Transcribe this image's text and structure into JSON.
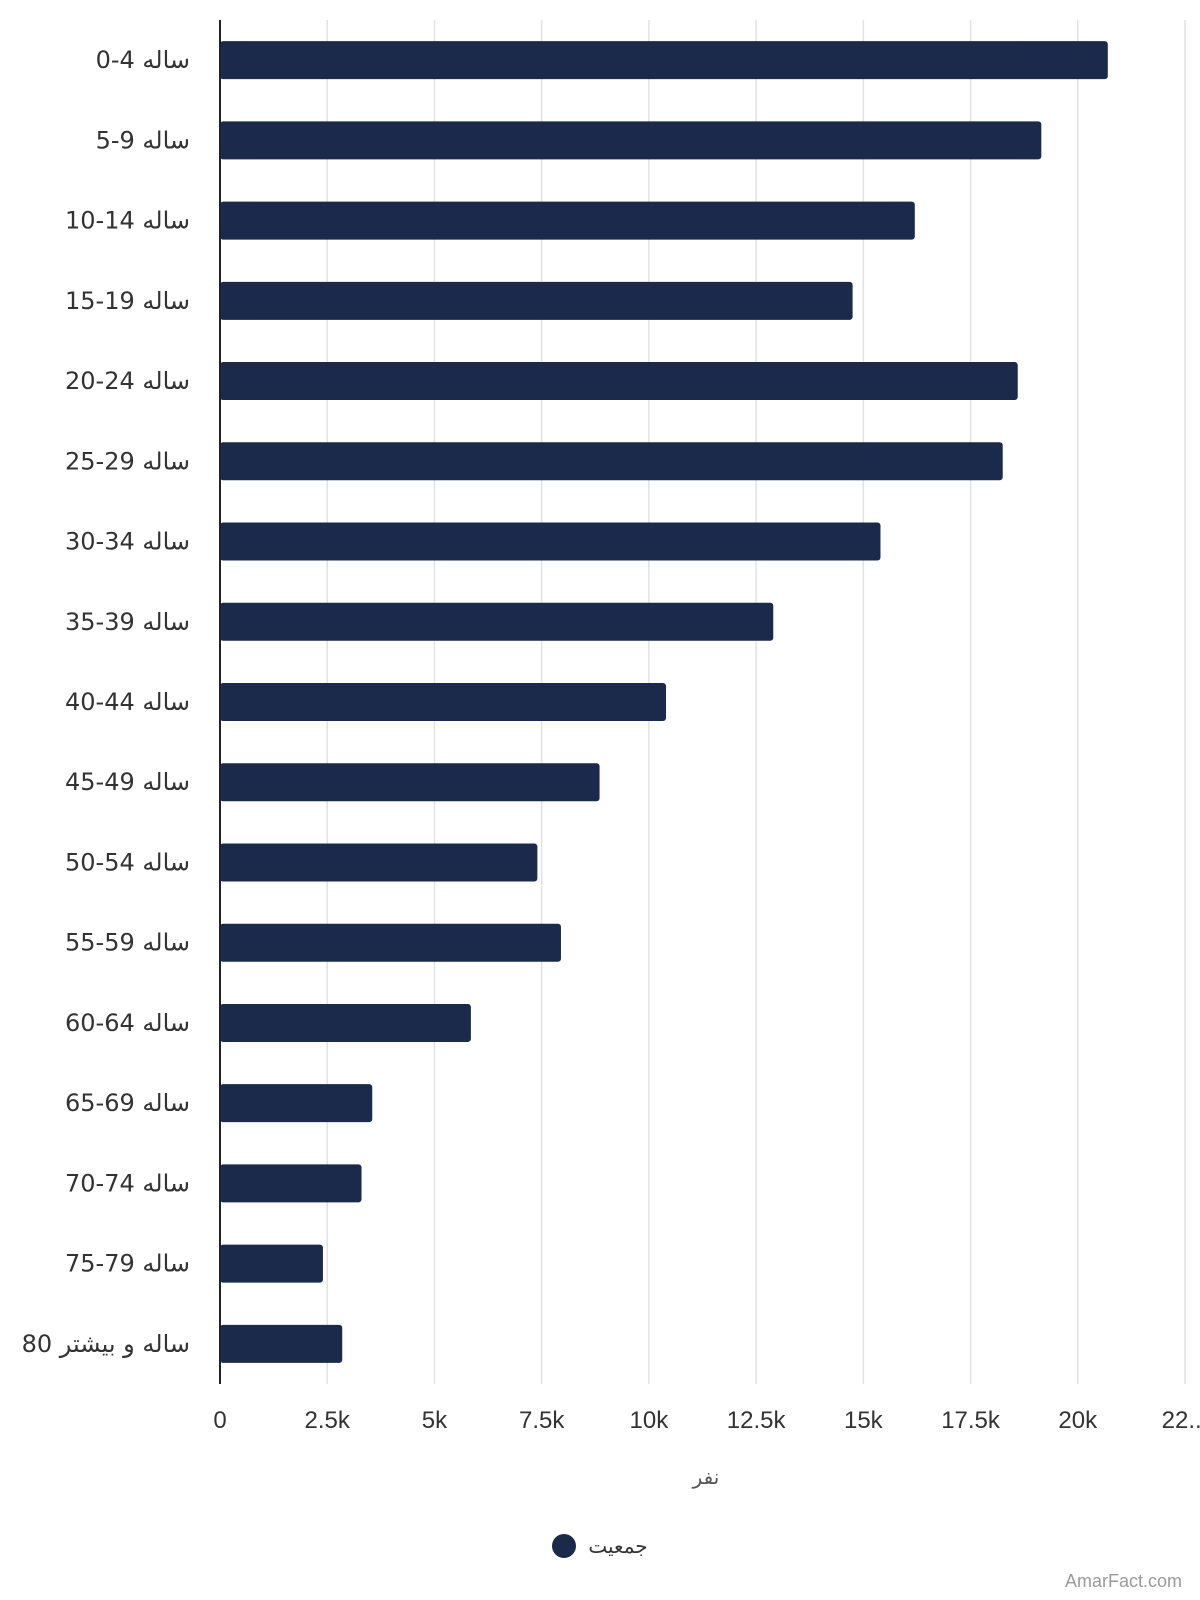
{
  "chart_data": {
    "type": "bar",
    "orientation": "horizontal",
    "categories": [
      "0-4 ساله",
      "5-9 ساله",
      "10-14 ساله",
      "15-19 ساله",
      "20-24 ساله",
      "25-29 ساله",
      "30-34 ساله",
      "35-39 ساله",
      "40-44 ساله",
      "45-49 ساله",
      "50-54 ساله",
      "55-59 ساله",
      "60-64 ساله",
      "65-69 ساله",
      "70-74 ساله",
      "75-79 ساله",
      "80 ساله و بیشتر"
    ],
    "series": [
      {
        "name": "جمعیت",
        "color": "#1b2a4a",
        "values": [
          20700,
          19150,
          16200,
          14750,
          18600,
          18250,
          15400,
          12900,
          10400,
          8850,
          7400,
          7950,
          5850,
          3550,
          3300,
          2400,
          2850
        ]
      }
    ],
    "xlabel": "نفر",
    "ylabel": "",
    "xlim": [
      0,
      22500
    ],
    "x_ticks": [
      "0",
      "2.5k",
      "5k",
      "7.5k",
      "10k",
      "12.5k",
      "15k",
      "17.5k",
      "20k",
      "22..."
    ],
    "grid": true,
    "legend_position": "bottom-center"
  },
  "watermark": "AmarFact.com"
}
